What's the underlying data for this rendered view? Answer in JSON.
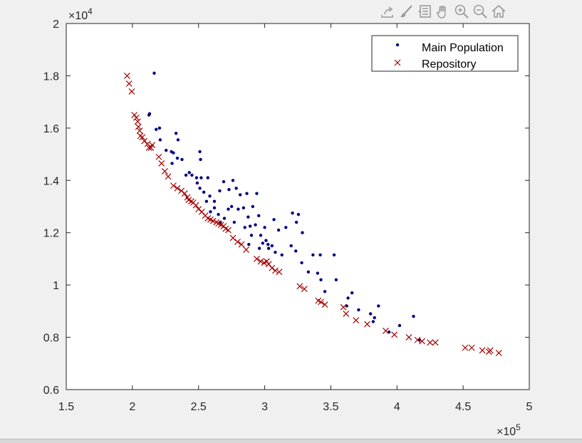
{
  "toolbar": {
    "icons": [
      "export-icon",
      "brush-icon",
      "data-tips-icon",
      "pan-hand-icon",
      "zoom-in-icon",
      "zoom-out-icon",
      "home-icon"
    ]
  },
  "colors": {
    "background": "#f0f0f0",
    "axes_background": "#ffffff",
    "population": "#00007f",
    "repository": "#a50000"
  },
  "chart_data": {
    "type": "scatter",
    "title": "",
    "xlabel": "",
    "ylabel": "",
    "xlim": [
      150000,
      500000
    ],
    "ylim": [
      6000,
      20000
    ],
    "x_ticks": [
      150000,
      200000,
      250000,
      300000,
      350000,
      400000,
      450000,
      500000
    ],
    "x_tick_labels": [
      "1.5",
      "2",
      "2.5",
      "3",
      "3.5",
      "4",
      "4.5",
      "5"
    ],
    "y_ticks": [
      6000,
      8000,
      10000,
      12000,
      14000,
      16000,
      18000,
      20000
    ],
    "y_tick_labels": [
      "0.6",
      "0.8",
      "1",
      "1.2",
      "1.4",
      "1.6",
      "1.8",
      "2"
    ],
    "x_exponent": {
      "base": "×10",
      "power": "5"
    },
    "y_exponent": {
      "base": "×10",
      "power": "4"
    },
    "legend": {
      "position": "top-right",
      "entries": [
        "Main Population",
        "Repository"
      ]
    },
    "series": [
      {
        "name": "Main Population",
        "marker": "dot",
        "points": [
          [
            216500,
            18100
          ],
          [
            213000,
            16550
          ],
          [
            212500,
            16500
          ],
          [
            218000,
            15950
          ],
          [
            220500,
            16000
          ],
          [
            221000,
            15550
          ],
          [
            225500,
            15150
          ],
          [
            229500,
            15100
          ],
          [
            231000,
            15050
          ],
          [
            234000,
            14850
          ],
          [
            233000,
            15800
          ],
          [
            234500,
            15550
          ],
          [
            237500,
            14800
          ],
          [
            230000,
            14650
          ],
          [
            240500,
            14200
          ],
          [
            243000,
            14300
          ],
          [
            245000,
            14200
          ],
          [
            248500,
            14100
          ],
          [
            251000,
            15100
          ],
          [
            251500,
            14800
          ],
          [
            252000,
            14100
          ],
          [
            257000,
            14100
          ],
          [
            249000,
            13900
          ],
          [
            251000,
            13700
          ],
          [
            254000,
            13550
          ],
          [
            258500,
            13400
          ],
          [
            262000,
            13200
          ],
          [
            266000,
            13600
          ],
          [
            269000,
            13950
          ],
          [
            273000,
            13650
          ],
          [
            276000,
            14000
          ],
          [
            278500,
            13700
          ],
          [
            281500,
            13450
          ],
          [
            286500,
            13500
          ],
          [
            291000,
            13000
          ],
          [
            294000,
            13500
          ],
          [
            256000,
            13200
          ],
          [
            259000,
            12800
          ],
          [
            262000,
            12950
          ],
          [
            265000,
            12700
          ],
          [
            266500,
            12400
          ],
          [
            269500,
            12550
          ],
          [
            272500,
            12900
          ],
          [
            275000,
            13000
          ],
          [
            277000,
            12400
          ],
          [
            280000,
            12900
          ],
          [
            284000,
            12950
          ],
          [
            287500,
            12600
          ],
          [
            289000,
            12250
          ],
          [
            293000,
            12300
          ],
          [
            295500,
            12650
          ],
          [
            300000,
            12200
          ],
          [
            297000,
            11900
          ],
          [
            298500,
            11600
          ],
          [
            303000,
            11400
          ],
          [
            305500,
            11500
          ],
          [
            307000,
            12500
          ],
          [
            310500,
            12100
          ],
          [
            316000,
            12200
          ],
          [
            321000,
            12750
          ],
          [
            324000,
            12400
          ],
          [
            325500,
            12700
          ],
          [
            328500,
            12000
          ],
          [
            320000,
            11500
          ],
          [
            323500,
            11300
          ],
          [
            328000,
            10850
          ],
          [
            333000,
            10500
          ],
          [
            336500,
            11150
          ],
          [
            342000,
            11150
          ],
          [
            340000,
            10450
          ],
          [
            342500,
            10200
          ],
          [
            345500,
            9750
          ],
          [
            352500,
            11150
          ],
          [
            354000,
            10200
          ],
          [
            363000,
            9500
          ],
          [
            366000,
            9700
          ],
          [
            362000,
            9200
          ],
          [
            371000,
            9050
          ],
          [
            380000,
            8900
          ],
          [
            383000,
            8750
          ],
          [
            386000,
            9200
          ],
          [
            382000,
            8600
          ],
          [
            394000,
            8200
          ],
          [
            402000,
            8450
          ],
          [
            412500,
            8800
          ],
          [
            417000,
            7900
          ],
          [
            302500,
            11550
          ],
          [
            308000,
            11250
          ],
          [
            313000,
            11150
          ],
          [
            288000,
            11550
          ],
          [
            296000,
            11400
          ],
          [
            301000,
            11700
          ],
          [
            285000,
            12200
          ],
          [
            290000,
            11900
          ]
        ]
      },
      {
        "name": "Repository",
        "marker": "x",
        "points": [
          [
            196000,
            18000
          ],
          [
            197500,
            17700
          ],
          [
            199500,
            17400
          ],
          [
            201500,
            16500
          ],
          [
            203000,
            16400
          ],
          [
            204000,
            16250
          ],
          [
            204500,
            16050
          ],
          [
            205500,
            15900
          ],
          [
            206000,
            15700
          ],
          [
            207500,
            15650
          ],
          [
            209000,
            15500
          ],
          [
            211500,
            15400
          ],
          [
            212500,
            15250
          ],
          [
            214000,
            15250
          ],
          [
            215000,
            15350
          ],
          [
            220000,
            14900
          ],
          [
            222000,
            14650
          ],
          [
            224500,
            14350
          ],
          [
            227000,
            14150
          ],
          [
            231000,
            13800
          ],
          [
            234000,
            13700
          ],
          [
            237000,
            13600
          ],
          [
            239500,
            13500
          ],
          [
            241500,
            13350
          ],
          [
            242500,
            13250
          ],
          [
            244500,
            13200
          ],
          [
            246000,
            13150
          ],
          [
            248000,
            13050
          ],
          [
            250000,
            12900
          ],
          [
            252500,
            12800
          ],
          [
            255000,
            12650
          ],
          [
            257000,
            12550
          ],
          [
            259000,
            12500
          ],
          [
            261000,
            12450
          ],
          [
            263500,
            12400
          ],
          [
            265000,
            12350
          ],
          [
            267000,
            12300
          ],
          [
            269000,
            12250
          ],
          [
            270500,
            12150
          ],
          [
            272500,
            12100
          ],
          [
            276000,
            11800
          ],
          [
            279500,
            11650
          ],
          [
            282500,
            11550
          ],
          [
            286000,
            11350
          ],
          [
            294000,
            11000
          ],
          [
            297000,
            10900
          ],
          [
            299500,
            10850
          ],
          [
            301500,
            10900
          ],
          [
            303000,
            10800
          ],
          [
            305500,
            10650
          ],
          [
            308000,
            10550
          ],
          [
            311000,
            10500
          ],
          [
            326500,
            9950
          ],
          [
            330000,
            9850
          ],
          [
            340500,
            9400
          ],
          [
            342500,
            9350
          ],
          [
            345500,
            9250
          ],
          [
            359500,
            9150
          ],
          [
            361500,
            8900
          ],
          [
            369000,
            8650
          ],
          [
            377500,
            8500
          ],
          [
            391500,
            8250
          ],
          [
            398000,
            8100
          ],
          [
            409000,
            8000
          ],
          [
            415500,
            7900
          ],
          [
            419000,
            7850
          ],
          [
            425000,
            7800
          ],
          [
            429000,
            7800
          ],
          [
            451500,
            7600
          ],
          [
            456500,
            7600
          ],
          [
            464500,
            7500
          ],
          [
            469500,
            7450
          ],
          [
            470500,
            7500
          ],
          [
            477000,
            7400
          ]
        ]
      }
    ]
  }
}
